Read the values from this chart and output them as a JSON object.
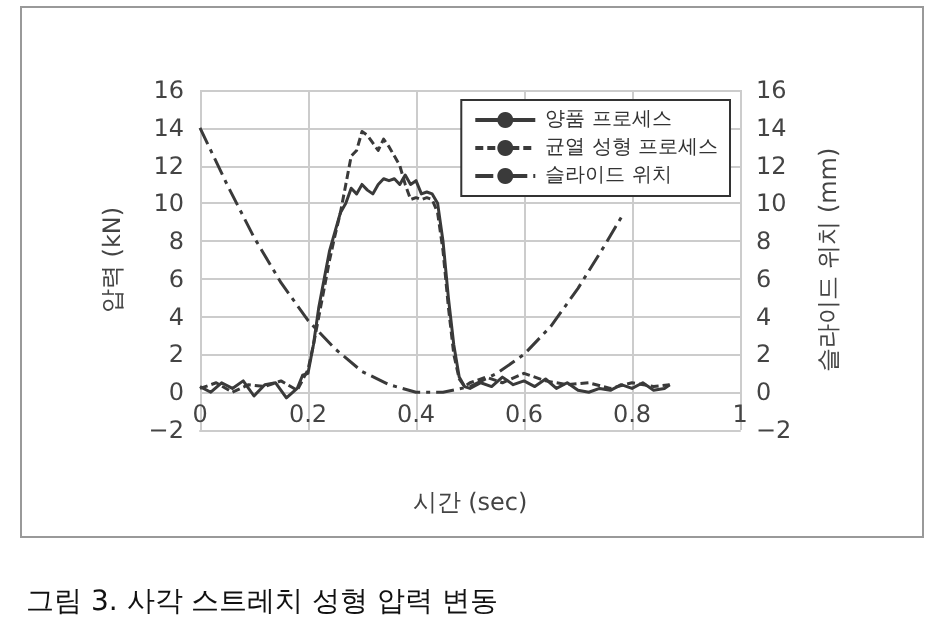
{
  "chart_data": {
    "type": "line",
    "title": "그림 3. 사각 스트레치 성형 압력 변동",
    "xlabel": "시간 (sec)",
    "ylabel": "압력 (kN)",
    "y2label": "슬라이드 위치 (mm)",
    "xlim": [
      0,
      1
    ],
    "xticks": [
      0,
      0.2,
      0.4,
      0.6,
      0.8,
      1
    ],
    "ylim": [
      -2,
      16
    ],
    "yticks": [
      -2,
      0,
      2,
      4,
      6,
      8,
      10,
      12,
      14,
      16
    ],
    "y2lim": [
      -2,
      16
    ],
    "y2ticks": [
      -2,
      0,
      2,
      4,
      6,
      8,
      10,
      12,
      14,
      16
    ],
    "grid": true,
    "legend": "top right",
    "marker": "none",
    "series": [
      {
        "name": "양품 프로세스",
        "color": "#3a3a3a",
        "line_style": "solid",
        "x": [
          0,
          0.02,
          0.04,
          0.06,
          0.08,
          0.1,
          0.12,
          0.14,
          0.16,
          0.18,
          0.19,
          0.2,
          0.21,
          0.22,
          0.23,
          0.24,
          0.25,
          0.26,
          0.27,
          0.28,
          0.29,
          0.3,
          0.31,
          0.32,
          0.33,
          0.34,
          0.35,
          0.36,
          0.37,
          0.38,
          0.39,
          0.4,
          0.41,
          0.42,
          0.43,
          0.44,
          0.45,
          0.46,
          0.47,
          0.48,
          0.49,
          0.5,
          0.52,
          0.54,
          0.56,
          0.58,
          0.6,
          0.62,
          0.64,
          0.66,
          0.68,
          0.7,
          0.72,
          0.74,
          0.76,
          0.78,
          0.8,
          0.82,
          0.84,
          0.86,
          0.87
        ],
        "values": [
          0.3,
          0,
          0.5,
          0.2,
          0.6,
          -0.2,
          0.4,
          0.5,
          -0.3,
          0.2,
          0.9,
          1,
          2.5,
          4.5,
          6,
          7.5,
          8.5,
          9.5,
          10,
          10.8,
          10.5,
          11,
          10.7,
          10.5,
          11,
          11.3,
          11.2,
          11.3,
          11,
          11.5,
          11,
          11.2,
          10.5,
          10.6,
          10.5,
          10,
          8,
          5,
          2.5,
          0.8,
          0.3,
          0.2,
          0.5,
          0.3,
          0.8,
          0.4,
          0.6,
          0.3,
          0.7,
          0.2,
          0.5,
          0.1,
          0,
          0.2,
          0.1,
          0.4,
          0.2,
          0.5,
          0.1,
          0.2,
          0.4
        ]
      },
      {
        "name": "균열 성형 프로세스",
        "color": "#3a3a3a",
        "line_style": "dashed",
        "x": [
          0,
          0.03,
          0.06,
          0.09,
          0.12,
          0.15,
          0.18,
          0.2,
          0.21,
          0.22,
          0.23,
          0.24,
          0.25,
          0.26,
          0.27,
          0.28,
          0.29,
          0.3,
          0.31,
          0.32,
          0.33,
          0.34,
          0.35,
          0.36,
          0.37,
          0.38,
          0.39,
          0.4,
          0.41,
          0.42,
          0.43,
          0.44,
          0.45,
          0.46,
          0.47,
          0.48,
          0.49,
          0.5,
          0.53,
          0.56,
          0.6,
          0.64,
          0.68,
          0.72,
          0.76,
          0.8,
          0.84,
          0.87
        ],
        "values": [
          0.2,
          0.5,
          0,
          0.4,
          0.3,
          0.6,
          0.1,
          1.2,
          2.5,
          4,
          5.5,
          7,
          8.3,
          9.5,
          11,
          12.5,
          12.8,
          13.8,
          13.6,
          13.2,
          12.8,
          13.4,
          13,
          12.5,
          12,
          11,
          10.2,
          10.3,
          10.2,
          10.3,
          10.2,
          9.5,
          7.5,
          4.5,
          2,
          0.7,
          0.3,
          0.5,
          0.8,
          0.5,
          1,
          0.6,
          0.4,
          0.5,
          0.2,
          0.5,
          0.3,
          0.4
        ]
      },
      {
        "name": "슬라이드 위치",
        "color": "#3a3a3a",
        "line_style": "dashdot",
        "axis": "y2",
        "x": [
          0,
          0.05,
          0.1,
          0.15,
          0.2,
          0.25,
          0.3,
          0.35,
          0.4,
          0.45,
          0.5,
          0.55,
          0.6,
          0.65,
          0.7,
          0.75,
          0.785
        ],
        "values": [
          14,
          11,
          8.2,
          5.8,
          3.8,
          2.3,
          1.1,
          0.4,
          0,
          0,
          0.3,
          1,
          2,
          3.5,
          5.5,
          7.8,
          9.5
        ]
      }
    ]
  }
}
